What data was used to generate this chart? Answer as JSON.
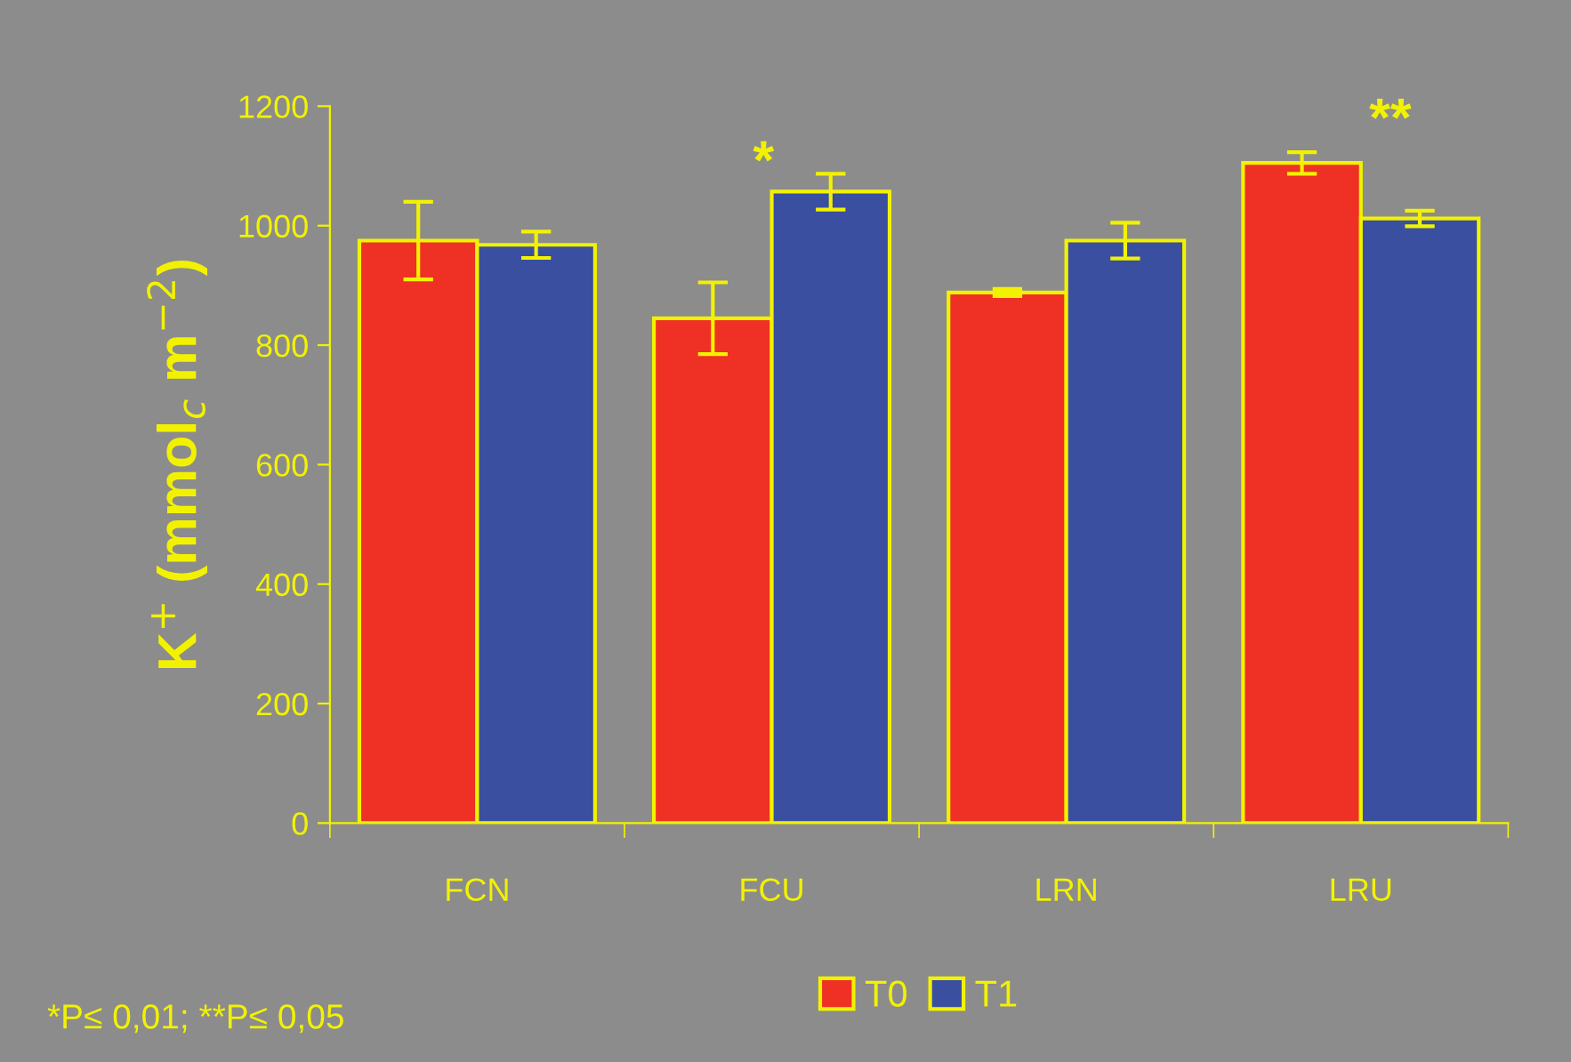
{
  "chart_data": {
    "type": "bar",
    "ylabel": "K$^{+}$ (mmol$_{c}$ m$^{−2}$)",
    "categories": [
      "FCN",
      "FCU",
      "LRN",
      "LRU"
    ],
    "series": [
      {
        "name": "T0",
        "color": "#ee3124",
        "values": [
          975,
          845,
          888,
          1105
        ],
        "errors": [
          65,
          60,
          6,
          18
        ]
      },
      {
        "name": "T1",
        "color": "#3a4fa0",
        "values": [
          968,
          1057,
          975,
          1012
        ],
        "errors": [
          22,
          30,
          30,
          13
        ]
      }
    ],
    "ylim": [
      0,
      1200
    ],
    "yticks": [
      0,
      200,
      400,
      600,
      800,
      1000,
      1200
    ],
    "grid": false,
    "legend": "bottom",
    "annotations": [
      "*",
      "**",
      "*P≤ 0,01; **P≤ 0,05"
    ]
  }
}
